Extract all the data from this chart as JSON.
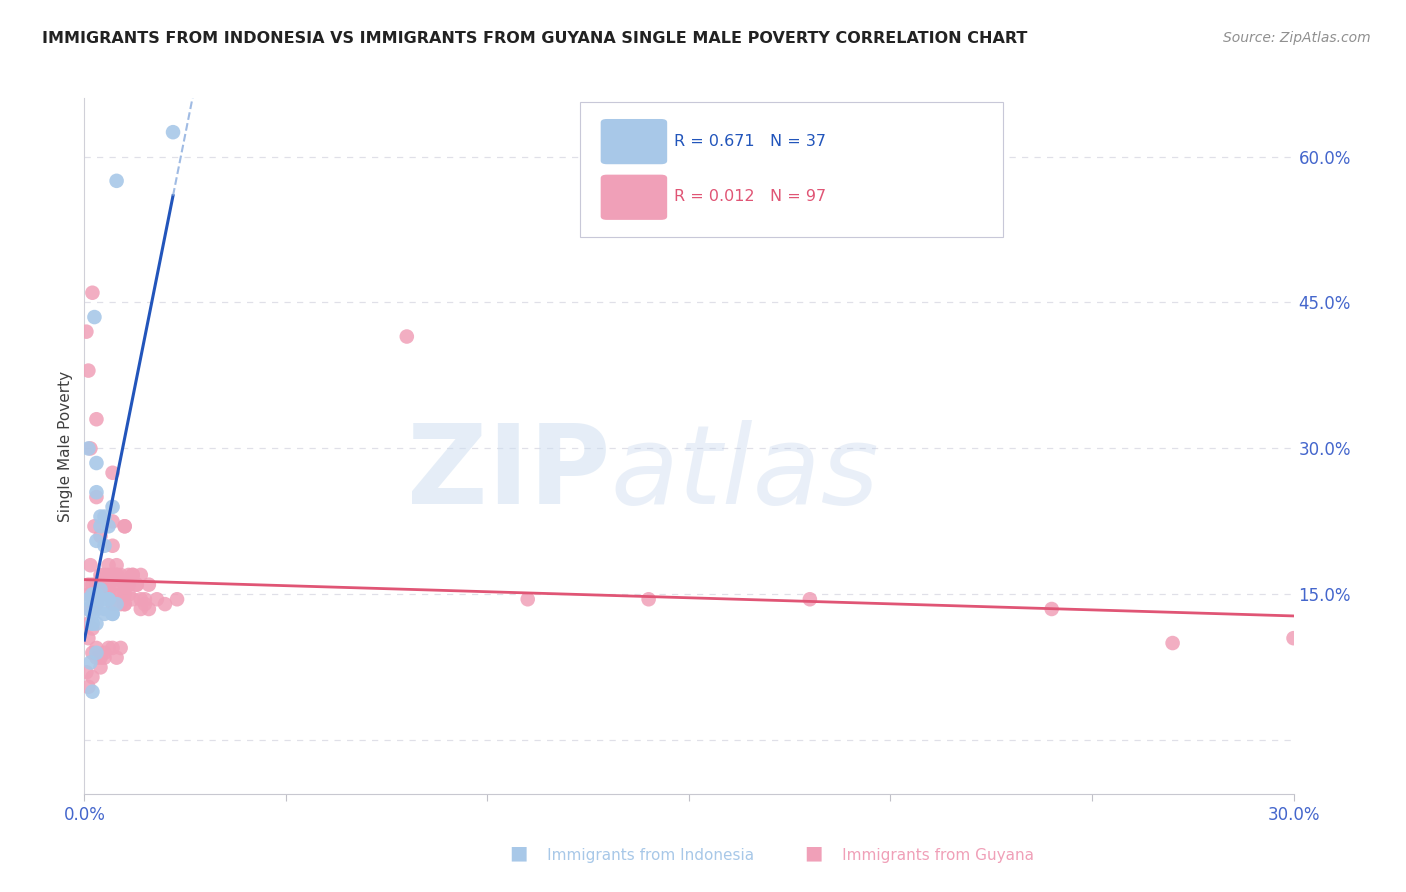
{
  "title": "IMMIGRANTS FROM INDONESIA VS IMMIGRANTS FROM GUYANA SINGLE MALE POVERTY CORRELATION CHART",
  "source": "Source: ZipAtlas.com",
  "ylabel": "Single Male Poverty",
  "right_yticks": [
    0.15,
    0.3,
    0.45,
    0.6
  ],
  "right_yticklabels": [
    "15.0%",
    "30.0%",
    "45.0%",
    "60.0%"
  ],
  "xtick_positions": [
    0.0,
    0.05,
    0.1,
    0.15,
    0.2,
    0.25,
    0.3
  ],
  "xmin": 0.0,
  "xmax": 0.3,
  "ymin": -0.055,
  "ymax": 0.66,
  "indonesia_color": "#a8c8e8",
  "guyana_color": "#f0a0b8",
  "indonesia_line_color": "#2255bb",
  "guyana_line_color": "#e05575",
  "legend_label_indonesia": "R = 0.671   N = 37",
  "legend_label_guyana": "R = 0.012   N = 97",
  "axis_label_color": "#4466cc",
  "title_color": "#222222",
  "grid_color": "#e0e0e8",
  "indonesia_x": [
    0.0015,
    0.003,
    0.0025,
    0.004,
    0.005,
    0.006,
    0.003,
    0.007,
    0.008,
    0.002,
    0.001,
    0.004,
    0.003,
    0.005,
    0.006,
    0.002,
    0.003,
    0.004,
    0.005,
    0.007,
    0.001,
    0.002,
    0.003,
    0.004,
    0.005,
    0.006,
    0.007,
    0.008,
    0.003,
    0.002,
    0.001,
    0.003,
    0.004,
    0.002,
    0.002,
    0.003,
    0.022
  ],
  "indonesia_y": [
    0.08,
    0.285,
    0.435,
    0.23,
    0.135,
    0.22,
    0.255,
    0.24,
    0.575,
    0.15,
    0.145,
    0.145,
    0.205,
    0.2,
    0.145,
    0.13,
    0.15,
    0.155,
    0.13,
    0.13,
    0.3,
    0.145,
    0.145,
    0.22,
    0.23,
    0.145,
    0.13,
    0.14,
    0.135,
    0.12,
    0.135,
    0.12,
    0.145,
    0.12,
    0.05,
    0.09,
    0.625
  ],
  "guyana_x": [
    0.0005,
    0.001,
    0.0015,
    0.002,
    0.0025,
    0.003,
    0.001,
    0.002,
    0.0015,
    0.003,
    0.001,
    0.002,
    0.003,
    0.004,
    0.005,
    0.006,
    0.007,
    0.008,
    0.009,
    0.01,
    0.002,
    0.003,
    0.004,
    0.005,
    0.006,
    0.007,
    0.008,
    0.009,
    0.01,
    0.011,
    0.003,
    0.004,
    0.005,
    0.006,
    0.007,
    0.008,
    0.009,
    0.01,
    0.012,
    0.013,
    0.004,
    0.005,
    0.006,
    0.007,
    0.008,
    0.009,
    0.01,
    0.011,
    0.013,
    0.014,
    0.005,
    0.006,
    0.007,
    0.008,
    0.01,
    0.011,
    0.012,
    0.014,
    0.015,
    0.016,
    0.006,
    0.007,
    0.008,
    0.01,
    0.012,
    0.014,
    0.016,
    0.018,
    0.02,
    0.023,
    0.001,
    0.002,
    0.003,
    0.004,
    0.005,
    0.001,
    0.001,
    0.002,
    0.0005,
    0.001,
    0.08,
    0.11,
    0.14,
    0.18,
    0.24,
    0.003,
    0.002,
    0.004,
    0.005,
    0.006,
    0.007,
    0.008,
    0.009,
    0.01,
    0.015,
    0.3,
    0.27
  ],
  "guyana_y": [
    0.42,
    0.38,
    0.3,
    0.46,
    0.22,
    0.33,
    0.16,
    0.135,
    0.18,
    0.14,
    0.15,
    0.16,
    0.14,
    0.17,
    0.15,
    0.16,
    0.2,
    0.17,
    0.14,
    0.15,
    0.15,
    0.25,
    0.16,
    0.16,
    0.18,
    0.16,
    0.17,
    0.17,
    0.22,
    0.15,
    0.16,
    0.165,
    0.16,
    0.17,
    0.17,
    0.18,
    0.15,
    0.16,
    0.17,
    0.16,
    0.21,
    0.17,
    0.16,
    0.225,
    0.17,
    0.165,
    0.22,
    0.16,
    0.16,
    0.17,
    0.155,
    0.16,
    0.275,
    0.165,
    0.155,
    0.17,
    0.17,
    0.135,
    0.14,
    0.135,
    0.155,
    0.14,
    0.15,
    0.14,
    0.145,
    0.145,
    0.16,
    0.145,
    0.14,
    0.145,
    0.105,
    0.065,
    0.085,
    0.075,
    0.09,
    0.135,
    0.12,
    0.115,
    0.07,
    0.055,
    0.415,
    0.145,
    0.145,
    0.145,
    0.135,
    0.095,
    0.09,
    0.085,
    0.085,
    0.095,
    0.095,
    0.085,
    0.095,
    0.14,
    0.145,
    0.105,
    0.1
  ],
  "indo_line_x_start": 0.0,
  "indo_line_x_solid_end": 0.022,
  "indo_line_x_dash_end": 0.095,
  "guy_line_x_start": 0.0,
  "guy_line_x_end": 0.3
}
